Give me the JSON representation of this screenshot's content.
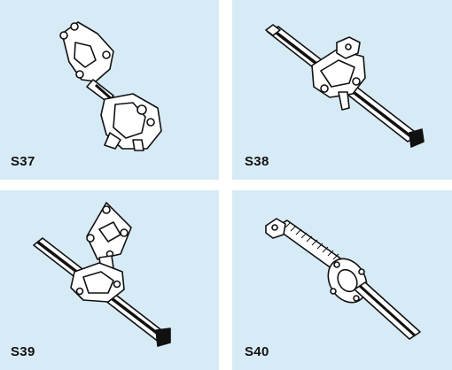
{
  "panels": [
    {
      "code": "S37",
      "icon": "gearbox-mount-with-shaft-illustration"
    },
    {
      "code": "S38",
      "icon": "straight-shaft-with-bracket-illustration"
    },
    {
      "code": "S39",
      "icon": "shaft-with-plate-mount-illustration"
    },
    {
      "code": "S40",
      "icon": "threaded-shaft-with-flange-illustration"
    }
  ],
  "colors": {
    "panel_bg": "#d7ebf6",
    "ink": "#111111",
    "gap": "#ffffff"
  }
}
